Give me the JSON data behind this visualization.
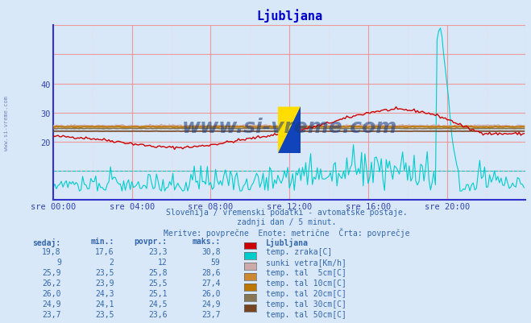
{
  "title": "Ljubljana",
  "subtitle1": "Slovenija / vremenski podatki - avtomatske postaje.",
  "subtitle2": "zadnji dan / 5 minut.",
  "subtitle3": "Meritve: povprečne  Enote: metrične  Črta: povprečje",
  "watermark": "www.si-vreme.com",
  "xlabel_ticks": [
    "sre 00:00",
    "sre 04:00",
    "sre 08:00",
    "sre 12:00",
    "sre 16:00",
    "sre 20:00"
  ],
  "ylim_min": 0,
  "ylim_max": 60,
  "xlim": [
    0,
    288
  ],
  "bg_color": "#d8e8f8",
  "plot_bg_color": "#d8e8f8",
  "grid_color_major": "#ee9999",
  "grid_color_minor": "#ffcccc",
  "axis_color": "#3333cc",
  "tick_color": "#3344aa",
  "title_color": "#0000cc",
  "text_color": "#3366aa",
  "table_header_color": "#3366aa",
  "table_rows": [
    {
      "sedaj": "19,8",
      "min": "17,6",
      "povpr": "23,3",
      "maks": "30,8",
      "label": "temp. zraka[C]",
      "color": "#cc0000"
    },
    {
      "sedaj": "9",
      "min": "2",
      "povpr": "12",
      "maks": "59",
      "label": "sunki vetra[Km/h]",
      "color": "#00cccc"
    },
    {
      "sedaj": "25,9",
      "min": "23,5",
      "povpr": "25,8",
      "maks": "28,6",
      "label": "temp. tal  5cm[C]",
      "color": "#ccaaaa"
    },
    {
      "sedaj": "26,2",
      "min": "23,9",
      "povpr": "25,5",
      "maks": "27,4",
      "label": "temp. tal 10cm[C]",
      "color": "#cc8833"
    },
    {
      "sedaj": "26,0",
      "min": "24,3",
      "povpr": "25,1",
      "maks": "26,0",
      "label": "temp. tal 20cm[C]",
      "color": "#bb7700"
    },
    {
      "sedaj": "24,9",
      "min": "24,1",
      "povpr": "24,5",
      "maks": "24,9",
      "label": "temp. tal 30cm[C]",
      "color": "#887755"
    },
    {
      "sedaj": "23,7",
      "min": "23,5",
      "povpr": "23,6",
      "maks": "23,7",
      "label": "temp. tal 50cm[C]",
      "color": "#774422"
    }
  ]
}
